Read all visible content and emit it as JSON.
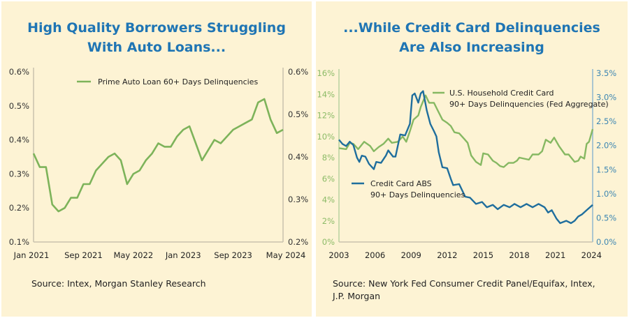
{
  "chart_data": [
    {
      "type": "line",
      "title_lines": [
        "High Quality Borrowers Struggling",
        "With Auto Loans..."
      ],
      "source": "Source: Intex, Morgan Stanley Research",
      "x_tick_labels": [
        "Jan 2021",
        "Sep 2021",
        "May 2022",
        "Jan 2023",
        "Sep 2023",
        "May 2024"
      ],
      "y_left": {
        "ticks": [
          "0.6%",
          "0.5%",
          "0.4%",
          "0.3%",
          "0.2%",
          "0.1%"
        ],
        "range": [
          0.1,
          0.6
        ]
      },
      "y_right": {
        "ticks": [
          "0.6%",
          "0.5%",
          "0.4%",
          "0.3%",
          "0.2%"
        ],
        "range": [
          0.2,
          0.6
        ]
      },
      "x_range_months": [
        0,
        40
      ],
      "grid": false,
      "legend_placement": "top-center",
      "series": [
        {
          "name": "Prime Auto Loan 60+ Days Delinquencies",
          "axis": "left",
          "color": "#7db35a",
          "x_start": "Jan 2021",
          "frequency": "monthly",
          "values": [
            0.36,
            0.32,
            0.32,
            0.21,
            0.19,
            0.2,
            0.23,
            0.23,
            0.27,
            0.27,
            0.31,
            0.33,
            0.35,
            0.36,
            0.34,
            0.27,
            0.3,
            0.31,
            0.34,
            0.36,
            0.39,
            0.38,
            0.38,
            0.41,
            0.43,
            0.44,
            0.39,
            0.34,
            0.37,
            0.4,
            0.39,
            0.41,
            0.43,
            0.44,
            0.45,
            0.46,
            0.51,
            0.52,
            0.46,
            0.42,
            0.43
          ]
        }
      ]
    },
    {
      "type": "line",
      "title_lines": [
        "...While Credit Card Delinquencies",
        "Are Also Increasing"
      ],
      "source_lines": [
        "Source: New York Fed Consumer Credit Panel/Equifax, Intex,",
        "J.P. Morgan"
      ],
      "x_tick_labels": [
        "2003",
        "2006",
        "2009",
        "2012",
        "2015",
        "2018",
        "2021",
        "2024"
      ],
      "x_range": [
        2003,
        2024.1
      ],
      "y_left": {
        "ticks": [
          "16%",
          "14%",
          "12%",
          "10%",
          "8%",
          "6%",
          "4%",
          "2%",
          "0%"
        ],
        "range": [
          0,
          16
        ],
        "color": "#8cbb67"
      },
      "y_right": {
        "ticks": [
          "3.5%",
          "3.0%",
          "2.5%",
          "2.0%",
          "1.5%",
          "1.0%",
          "0.5%",
          "0.0%"
        ],
        "range": [
          0,
          3.5
        ],
        "color": "#3d86b2"
      },
      "grid": false,
      "series": [
        {
          "name_lines": [
            "U.S. Household Credit Card",
            "90+ Days Delinquencies (Fed Aggregate)"
          ],
          "axis": "left",
          "color": "#86b862",
          "x": [
            2003.0,
            2003.6,
            2003.9,
            2004.2,
            2004.6,
            2005.1,
            2005.6,
            2005.9,
            2006.3,
            2006.7,
            2007.1,
            2007.4,
            2007.9,
            2008.3,
            2008.6,
            2008.9,
            2009.2,
            2009.6,
            2009.8,
            2010.2,
            2010.5,
            2010.9,
            2011.2,
            2011.6,
            2012.0,
            2012.3,
            2012.6,
            2013.0,
            2013.4,
            2013.7,
            2014.0,
            2014.4,
            2014.8,
            2015.0,
            2015.4,
            2015.8,
            2016.1,
            2016.4,
            2016.7,
            2017.1,
            2017.5,
            2017.8,
            2018.0,
            2018.4,
            2018.8,
            2019.1,
            2019.6,
            2019.9,
            2020.2,
            2020.6,
            2020.9,
            2021.3,
            2021.8,
            2022.1,
            2022.6,
            2022.9,
            2023.1,
            2023.4,
            2023.6,
            2023.8,
            2024.1
          ],
          "values": [
            8.9,
            8.8,
            9.4,
            9.3,
            8.8,
            9.5,
            9.1,
            8.6,
            9.0,
            9.3,
            9.8,
            9.4,
            9.5,
            10.0,
            9.5,
            10.5,
            11.6,
            12.0,
            12.8,
            13.9,
            13.2,
            13.2,
            12.5,
            11.6,
            11.3,
            11.0,
            10.4,
            10.3,
            9.8,
            9.4,
            8.2,
            7.6,
            7.3,
            8.4,
            8.3,
            7.7,
            7.5,
            7.2,
            7.1,
            7.5,
            7.5,
            7.7,
            8.0,
            7.9,
            7.8,
            8.3,
            8.3,
            8.6,
            9.7,
            9.4,
            9.9,
            9.1,
            8.3,
            8.3,
            7.6,
            7.7,
            8.1,
            7.9,
            9.3,
            9.5,
            10.7
          ]
        },
        {
          "name_lines": [
            "Credit Card ABS",
            "90+ Days Delinquencies"
          ],
          "axis": "right",
          "color": "#1f6e9d",
          "x": [
            2003.0,
            2003.3,
            2003.6,
            2003.9,
            2004.2,
            2004.5,
            2004.7,
            2004.9,
            2005.2,
            2005.5,
            2005.9,
            2006.1,
            2006.5,
            2006.9,
            2007.1,
            2007.5,
            2007.7,
            2008.1,
            2008.5,
            2008.9,
            2009.1,
            2009.3,
            2009.6,
            2009.8,
            2010.0,
            2010.3,
            2010.6,
            2010.9,
            2011.1,
            2011.3,
            2011.6,
            2012.0,
            2012.3,
            2012.5,
            2013.0,
            2013.5,
            2013.9,
            2014.4,
            2014.9,
            2015.3,
            2015.8,
            2016.2,
            2016.7,
            2017.2,
            2017.6,
            2018.1,
            2018.6,
            2019.1,
            2019.6,
            2020.1,
            2020.4,
            2020.7,
            2021.1,
            2021.4,
            2021.9,
            2022.3,
            2022.6,
            2022.9,
            2023.2,
            2023.6,
            2024.1
          ],
          "values": [
            2.12,
            2.03,
            1.99,
            2.08,
            2.01,
            1.75,
            1.66,
            1.79,
            1.77,
            1.62,
            1.51,
            1.66,
            1.64,
            1.79,
            1.9,
            1.77,
            1.77,
            2.23,
            2.21,
            2.45,
            3.04,
            3.08,
            2.89,
            3.08,
            3.13,
            2.73,
            2.45,
            2.3,
            2.19,
            1.86,
            1.55,
            1.53,
            1.31,
            1.18,
            1.2,
            0.94,
            0.92,
            0.79,
            0.83,
            0.72,
            0.77,
            0.68,
            0.77,
            0.72,
            0.79,
            0.72,
            0.79,
            0.72,
            0.79,
            0.72,
            0.61,
            0.66,
            0.48,
            0.39,
            0.44,
            0.39,
            0.44,
            0.53,
            0.57,
            0.66,
            0.77
          ]
        }
      ]
    }
  ]
}
